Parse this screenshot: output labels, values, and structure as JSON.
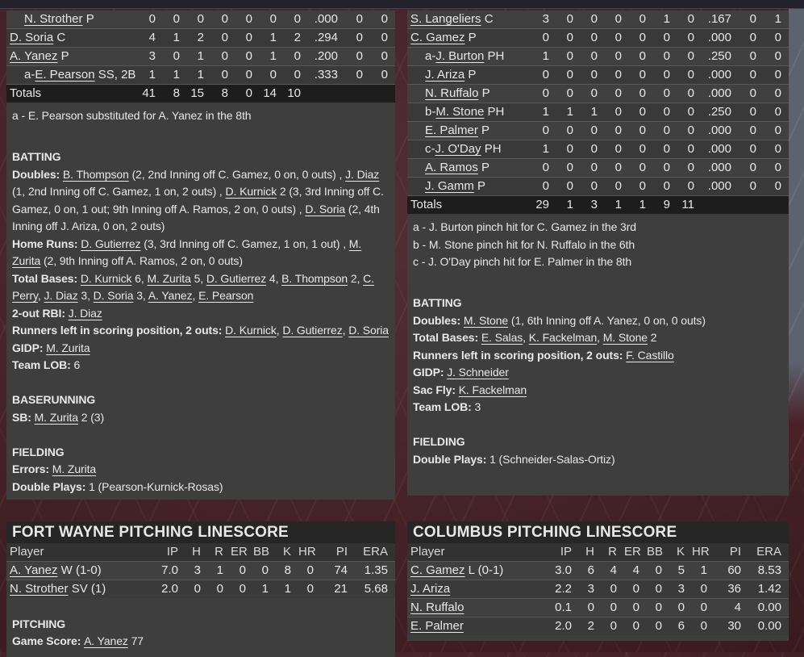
{
  "colors": {
    "panel": "#3e3e3e",
    "panel_dark": "#1d1d1d",
    "row_light": "#404040",
    "row_dark": "#393939",
    "header_row": "#323232",
    "title_bar": "#262626",
    "background_maroon": "#4a2027",
    "background_slate": "#5b636f",
    "top_bar": "#23222c",
    "text": "#e8e8e6"
  },
  "away_box": {
    "totals_label": "Totals",
    "rows": [
      {
        "prefix": "",
        "name": "N. Strother",
        "pos": "P",
        "indent": true,
        "stats": [
          "0",
          "0",
          "0",
          "0",
          "0",
          "0",
          "0",
          ".000",
          "0",
          "0"
        ]
      },
      {
        "prefix": "",
        "name": "D. Soria",
        "pos": "C",
        "indent": false,
        "stats": [
          "4",
          "1",
          "2",
          "0",
          "0",
          "1",
          "2",
          ".294",
          "0",
          "0"
        ]
      },
      {
        "prefix": "",
        "name": "A. Yanez",
        "pos": "P",
        "indent": false,
        "stats": [
          "3",
          "0",
          "1",
          "0",
          "0",
          "1",
          "0",
          ".200",
          "0",
          "0"
        ]
      },
      {
        "prefix": "a-",
        "name": "E. Pearson",
        "pos": "SS, 2B",
        "indent": true,
        "stats": [
          "1",
          "1",
          "1",
          "0",
          "0",
          "0",
          "0",
          ".333",
          "0",
          "0"
        ]
      }
    ],
    "totals": [
      "41",
      "8",
      "15",
      "8",
      "0",
      "14",
      "10",
      "",
      "",
      ""
    ],
    "notes": [
      "a - E. Pearson substituted for A. Yanez in the 8th"
    ],
    "sections": [
      {
        "title": "BATTING",
        "lines": [
          {
            "label": "Doubles: ",
            "segs": [
              {
                "t": "B. Thompson",
                "u": true
              },
              {
                "t": " (2, 2nd Inning off C. Gamez, 0 on, 0 outs) , "
              },
              {
                "t": "J. Diaz",
                "u": true
              },
              {
                "t": " (1, 2nd Inning off C. Gamez, 1 on, 2 outs) , "
              },
              {
                "t": "D. Kurnick",
                "u": true
              },
              {
                "t": " 2 (3, 3rd Inning off C. Gamez, 0 on, 1 out; 9th Inning off A. Ramos, 2 on, 0 outs) , "
              },
              {
                "t": "D. Soria",
                "u": true
              },
              {
                "t": " (2, 4th Inning off J. Ariza, 0 on, 2 outs)"
              }
            ]
          },
          {
            "label": "Home Runs: ",
            "segs": [
              {
                "t": "D. Gutierrez",
                "u": true
              },
              {
                "t": " (3, 3rd Inning off C. Gamez, 1 on, 1 out) , "
              },
              {
                "t": "M. Zurita",
                "u": true
              },
              {
                "t": " (2, 9th Inning off A. Ramos, 2 on, 0 outs)"
              }
            ]
          },
          {
            "label": "Total Bases: ",
            "segs": [
              {
                "t": "D. Kurnick",
                "u": true
              },
              {
                "t": " 6, "
              },
              {
                "t": "M. Zurita",
                "u": true
              },
              {
                "t": " 5, "
              },
              {
                "t": "D. Gutierrez",
                "u": true
              },
              {
                "t": " 4, "
              },
              {
                "t": "B. Thompson",
                "u": true
              },
              {
                "t": " 2, "
              },
              {
                "t": "C. Perry",
                "u": true
              },
              {
                "t": ", "
              },
              {
                "t": "J. Diaz",
                "u": true
              },
              {
                "t": " 3, "
              },
              {
                "t": "D. Soria",
                "u": true
              },
              {
                "t": " 3, "
              },
              {
                "t": "A. Yanez",
                "u": true
              },
              {
                "t": ", "
              },
              {
                "t": "E. Pearson",
                "u": true
              }
            ]
          },
          {
            "label": "2-out RBI: ",
            "segs": [
              {
                "t": "J. Diaz",
                "u": true
              }
            ]
          },
          {
            "label": "Runners left in scoring position, 2 outs: ",
            "segs": [
              {
                "t": "D. Kurnick",
                "u": true
              },
              {
                "t": ", "
              },
              {
                "t": "D. Gutierrez",
                "u": true
              },
              {
                "t": ", "
              },
              {
                "t": "D. Soria",
                "u": true
              }
            ]
          },
          {
            "label": "GIDP: ",
            "segs": [
              {
                "t": "M. Zurita",
                "u": true
              }
            ]
          },
          {
            "label": "Team LOB: ",
            "segs": [
              {
                "t": "6"
              }
            ]
          }
        ]
      },
      {
        "title": "BASERUNNING",
        "lines": [
          {
            "label": "SB: ",
            "segs": [
              {
                "t": "M. Zurita",
                "u": true
              },
              {
                "t": " 2 (3)"
              }
            ]
          }
        ]
      },
      {
        "title": "FIELDING",
        "lines": [
          {
            "label": "Errors: ",
            "segs": [
              {
                "t": "M. Zurita",
                "u": true
              }
            ]
          },
          {
            "label": "Double Plays: ",
            "segs": [
              {
                "t": "1 (Pearson-Kurnick-Rosas)"
              }
            ]
          }
        ]
      }
    ]
  },
  "home_box": {
    "totals_label": "Totals",
    "rows": [
      {
        "prefix": "",
        "name": "S. Langeliers",
        "pos": "C",
        "indent": false,
        "stats": [
          "3",
          "0",
          "0",
          "0",
          "0",
          "1",
          "0",
          ".167",
          "0",
          "1"
        ]
      },
      {
        "prefix": "",
        "name": "C. Gamez",
        "pos": "P",
        "indent": false,
        "stats": [
          "0",
          "0",
          "0",
          "0",
          "0",
          "0",
          "0",
          ".000",
          "0",
          "0"
        ]
      },
      {
        "prefix": "a-",
        "name": "J. Burton",
        "pos": "PH",
        "indent": true,
        "stats": [
          "1",
          "0",
          "0",
          "0",
          "0",
          "0",
          "0",
          ".250",
          "0",
          "0"
        ]
      },
      {
        "prefix": "",
        "name": "J. Ariza",
        "pos": "P",
        "indent": true,
        "stats": [
          "0",
          "0",
          "0",
          "0",
          "0",
          "0",
          "0",
          ".000",
          "0",
          "0"
        ]
      },
      {
        "prefix": "",
        "name": "N. Ruffalo",
        "pos": "P",
        "indent": true,
        "stats": [
          "0",
          "0",
          "0",
          "0",
          "0",
          "0",
          "0",
          ".000",
          "0",
          "0"
        ]
      },
      {
        "prefix": "b-",
        "name": "M. Stone",
        "pos": "PH",
        "indent": true,
        "stats": [
          "1",
          "1",
          "1",
          "0",
          "0",
          "0",
          "0",
          ".250",
          "0",
          "0"
        ]
      },
      {
        "prefix": "",
        "name": "E. Palmer",
        "pos": "P",
        "indent": true,
        "stats": [
          "0",
          "0",
          "0",
          "0",
          "0",
          "0",
          "0",
          ".000",
          "0",
          "0"
        ]
      },
      {
        "prefix": "c-",
        "name": "J. O'Day",
        "pos": "PH",
        "indent": true,
        "stats": [
          "1",
          "0",
          "0",
          "0",
          "0",
          "0",
          "0",
          ".000",
          "0",
          "0"
        ]
      },
      {
        "prefix": "",
        "name": "A. Ramos",
        "pos": "P",
        "indent": true,
        "stats": [
          "0",
          "0",
          "0",
          "0",
          "0",
          "0",
          "0",
          ".000",
          "0",
          "0"
        ]
      },
      {
        "prefix": "",
        "name": "J. Gamm",
        "pos": "P",
        "indent": true,
        "stats": [
          "0",
          "0",
          "0",
          "0",
          "0",
          "0",
          "0",
          ".000",
          "0",
          "0"
        ]
      }
    ],
    "totals": [
      "29",
      "1",
      "3",
      "1",
      "1",
      "9",
      "11",
      "",
      "",
      ""
    ],
    "notes": [
      "a - J. Burton pinch hit for C. Gamez in the 3rd",
      "b - M. Stone pinch hit for N. Ruffalo in the 6th",
      "c - J. O'Day pinch hit for E. Palmer in the 8th"
    ],
    "sections": [
      {
        "title": "BATTING",
        "lines": [
          {
            "label": "Doubles: ",
            "segs": [
              {
                "t": "M. Stone",
                "u": true
              },
              {
                "t": " (1, 6th Inning off A. Yanez, 0 on, 0 outs)"
              }
            ]
          },
          {
            "label": "Total Bases: ",
            "segs": [
              {
                "t": "E. Salas",
                "u": true
              },
              {
                "t": ", "
              },
              {
                "t": "K. Fackelman",
                "u": true
              },
              {
                "t": ", "
              },
              {
                "t": "M. Stone",
                "u": true
              },
              {
                "t": " 2"
              }
            ]
          },
          {
            "label": "Runners left in scoring position, 2 outs: ",
            "segs": [
              {
                "t": "F. Castillo",
                "u": true
              }
            ]
          },
          {
            "label": "GIDP: ",
            "segs": [
              {
                "t": "J. Schneider",
                "u": true
              }
            ]
          },
          {
            "label": "Sac Fly: ",
            "segs": [
              {
                "t": "K. Fackelman",
                "u": true
              }
            ]
          },
          {
            "label": "Team LOB: ",
            "segs": [
              {
                "t": "3"
              }
            ]
          }
        ]
      },
      {
        "title": "FIELDING",
        "lines": [
          {
            "label": "Double Plays: ",
            "segs": [
              {
                "t": "1 (Schneider-Salas-Ortiz)"
              }
            ]
          }
        ]
      }
    ]
  },
  "away_linescore": {
    "title": "FORT WAYNE PITCHING LINESCORE",
    "headers": [
      "Player",
      "IP",
      "H",
      "R",
      "ER",
      "BB",
      "K",
      "HR",
      "PI",
      "ERA"
    ],
    "rows": [
      {
        "name": "A. Yanez",
        "suffix": " W (1-0)",
        "stats": [
          "7.0",
          "3",
          "1",
          "0",
          "0",
          "8",
          "0",
          "74",
          "1.35"
        ]
      },
      {
        "name": "N. Strother",
        "suffix": " SV (1)",
        "stats": [
          "2.0",
          "0",
          "0",
          "0",
          "1",
          "1",
          "0",
          "21",
          "5.68"
        ]
      }
    ],
    "sections": [
      {
        "title": "PITCHING",
        "lines": [
          {
            "label": "Game Score: ",
            "segs": [
              {
                "t": "A. Yanez",
                "u": true
              },
              {
                "t": " 77"
              }
            ]
          }
        ]
      }
    ]
  },
  "home_linescore": {
    "title": "COLUMBUS PITCHING LINESCORE",
    "headers": [
      "Player",
      "IP",
      "H",
      "R",
      "ER",
      "BB",
      "K",
      "HR",
      "PI",
      "ERA"
    ],
    "rows": [
      {
        "name": "C. Gamez",
        "suffix": " L (0-1)",
        "stats": [
          "3.0",
          "6",
          "4",
          "4",
          "0",
          "5",
          "1",
          "60",
          "8.53"
        ]
      },
      {
        "name": "J. Ariza",
        "suffix": "",
        "stats": [
          "2.2",
          "3",
          "0",
          "0",
          "0",
          "3",
          "0",
          "36",
          "1.42"
        ]
      },
      {
        "name": "N. Ruffalo",
        "suffix": "",
        "stats": [
          "0.1",
          "0",
          "0",
          "0",
          "0",
          "0",
          "0",
          "4",
          "0.00"
        ]
      },
      {
        "name": "E. Palmer",
        "suffix": "",
        "stats": [
          "2.0",
          "2",
          "0",
          "0",
          "0",
          "6",
          "0",
          "30",
          "0.00"
        ]
      }
    ],
    "sections": []
  }
}
